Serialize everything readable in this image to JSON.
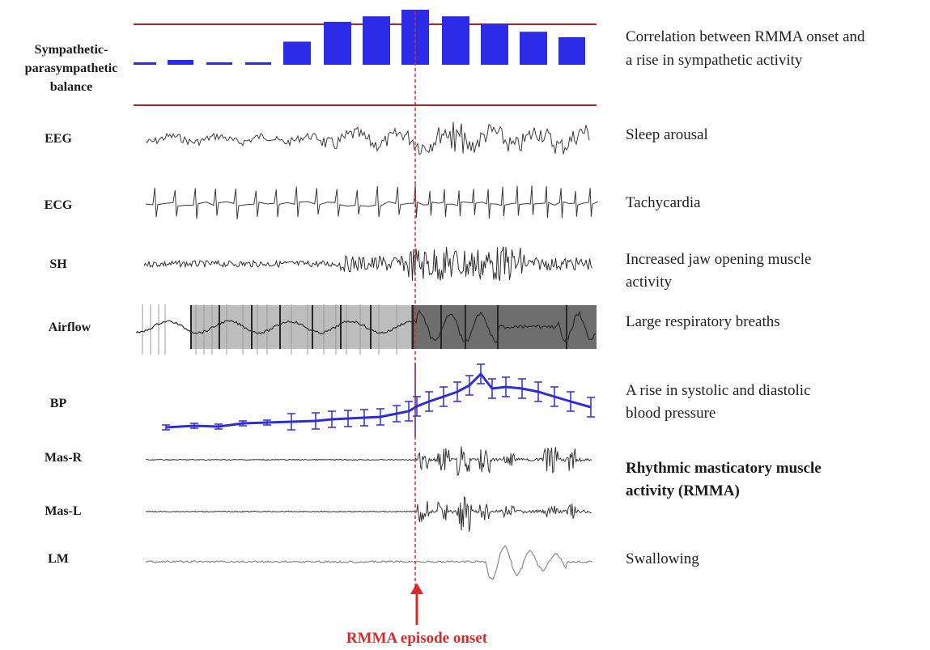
{
  "labels": {
    "symp": [
      "Sympathetic-",
      "parasympathetic",
      "balance"
    ],
    "eeg": "EEG",
    "ecg": "ECG",
    "sh": "SH",
    "airflow": "Airflow",
    "bp": "BP",
    "mas_r": "Mas-R",
    "mas_l": "Mas-L",
    "lm": "LM"
  },
  "descriptions": {
    "symp": [
      "Correlation between RMMA onset and",
      "a rise in sympathetic activity"
    ],
    "eeg": "Sleep arousal",
    "ecg": "Tachycardia",
    "sh": [
      "Increased jaw opening muscle",
      "activity"
    ],
    "airflow": "Large respiratory breaths",
    "bp": [
      "A rise in systolic and diastolic",
      "blood pressure"
    ],
    "rmma": [
      "Rhythmic masticatory muscle",
      "activity (RMMA)"
    ],
    "lm": "Swallowing"
  },
  "onset_label": "RMMA episode onset",
  "balance_levels": [
    0.04,
    0.1,
    0.04,
    0.04,
    0.42,
    0.78,
    0.88,
    1.0,
    0.88,
    0.74,
    0.6,
    0.5
  ],
  "colors": {
    "bar": "#2b2be8",
    "reference_line": "#b22222",
    "onset": "#d42a2a",
    "trace": "#333333",
    "bp": "#2d2dd6"
  }
}
